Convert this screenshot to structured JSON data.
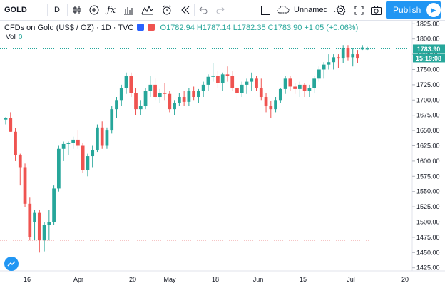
{
  "toolbar": {
    "symbol": "GOLD",
    "interval": "D",
    "layout_name": "Unnamed",
    "publish_label": "Publish"
  },
  "legend": {
    "title": "CFDs on Gold (US$ / OZ) · 1D · TVC",
    "open": "O1782.94",
    "high": "H1787.14",
    "low": "L1782.35",
    "close": "C1783.90",
    "change": "+1.05 (+0.06%)",
    "vol_label": "Vol",
    "vol_value": "0"
  },
  "price_axis": {
    "current_price": "1783.90",
    "countdown": "15:19:08"
  },
  "colors": {
    "up": "#26a69a",
    "down": "#ef5350",
    "accent": "#2196f3"
  },
  "chart_data": {
    "type": "candlestick",
    "x_labels": [
      "16",
      "Apr",
      "20",
      "May",
      "18",
      "Jun",
      "15",
      "Jul",
      "20"
    ],
    "y_ticks": [
      1425,
      1450,
      1475,
      1500,
      1525,
      1550,
      1575,
      1600,
      1625,
      1650,
      1675,
      1700,
      1725,
      1750,
      1775,
      1800,
      1825
    ],
    "ylim": [
      1420,
      1830
    ],
    "current_price": 1783.9,
    "ohlc": [
      [
        1668,
        1672,
        1660,
        1670
      ],
      [
        1670,
        1680,
        1648,
        1648
      ],
      [
        1648,
        1654,
        1600,
        1610
      ],
      [
        1610,
        1612,
        1560,
        1590
      ],
      [
        1590,
        1596,
        1525,
        1530
      ],
      [
        1530,
        1540,
        1470,
        1475
      ],
      [
        1500,
        1520,
        1470,
        1515
      ],
      [
        1515,
        1520,
        1450,
        1470
      ],
      [
        1470,
        1500,
        1452,
        1495
      ],
      [
        1495,
        1520,
        1470,
        1500
      ],
      [
        1500,
        1560,
        1495,
        1555
      ],
      [
        1555,
        1625,
        1550,
        1620
      ],
      [
        1620,
        1632,
        1600,
        1628
      ],
      [
        1628,
        1632,
        1610,
        1630
      ],
      [
        1630,
        1640,
        1620,
        1635
      ],
      [
        1635,
        1650,
        1620,
        1625
      ],
      [
        1625,
        1630,
        1580,
        1585
      ],
      [
        1585,
        1612,
        1575,
        1608
      ],
      [
        1608,
        1625,
        1590,
        1618
      ],
      [
        1618,
        1660,
        1615,
        1655
      ],
      [
        1655,
        1665,
        1620,
        1625
      ],
      [
        1625,
        1655,
        1620,
        1650
      ],
      [
        1650,
        1690,
        1645,
        1685
      ],
      [
        1685,
        1705,
        1670,
        1700
      ],
      [
        1700,
        1725,
        1690,
        1720
      ],
      [
        1720,
        1745,
        1710,
        1740
      ],
      [
        1740,
        1745,
        1705,
        1712
      ],
      [
        1712,
        1720,
        1675,
        1685
      ],
      [
        1685,
        1700,
        1675,
        1690
      ],
      [
        1690,
        1720,
        1685,
        1715
      ],
      [
        1715,
        1740,
        1705,
        1725
      ],
      [
        1725,
        1735,
        1700,
        1705
      ],
      [
        1705,
        1718,
        1695,
        1712
      ],
      [
        1712,
        1728,
        1700,
        1710
      ],
      [
        1710,
        1715,
        1680,
        1685
      ],
      [
        1685,
        1700,
        1675,
        1695
      ],
      [
        1695,
        1712,
        1690,
        1705
      ],
      [
        1705,
        1715,
        1690,
        1697
      ],
      [
        1697,
        1720,
        1690,
        1715
      ],
      [
        1715,
        1722,
        1700,
        1705
      ],
      [
        1705,
        1718,
        1695,
        1715
      ],
      [
        1715,
        1730,
        1705,
        1725
      ],
      [
        1725,
        1742,
        1715,
        1738
      ],
      [
        1738,
        1760,
        1730,
        1740
      ],
      [
        1740,
        1748,
        1720,
        1728
      ],
      [
        1728,
        1745,
        1715,
        1742
      ],
      [
        1742,
        1755,
        1730,
        1740
      ],
      [
        1740,
        1748,
        1715,
        1720
      ],
      [
        1720,
        1725,
        1700,
        1712
      ],
      [
        1712,
        1730,
        1705,
        1725
      ],
      [
        1725,
        1735,
        1710,
        1730
      ],
      [
        1730,
        1745,
        1715,
        1735
      ],
      [
        1735,
        1740,
        1715,
        1720
      ],
      [
        1720,
        1735,
        1700,
        1705
      ],
      [
        1705,
        1712,
        1680,
        1690
      ],
      [
        1690,
        1698,
        1670,
        1685
      ],
      [
        1685,
        1705,
        1680,
        1700
      ],
      [
        1700,
        1720,
        1695,
        1718
      ],
      [
        1718,
        1740,
        1710,
        1735
      ],
      [
        1735,
        1740,
        1715,
        1722
      ],
      [
        1722,
        1728,
        1710,
        1718
      ],
      [
        1718,
        1730,
        1705,
        1725
      ],
      [
        1725,
        1728,
        1705,
        1715
      ],
      [
        1715,
        1725,
        1705,
        1720
      ],
      [
        1720,
        1740,
        1712,
        1735
      ],
      [
        1735,
        1755,
        1730,
        1750
      ],
      [
        1750,
        1762,
        1735,
        1758
      ],
      [
        1758,
        1775,
        1750,
        1762
      ],
      [
        1762,
        1775,
        1750,
        1770
      ],
      [
        1770,
        1775,
        1752,
        1768
      ],
      [
        1768,
        1790,
        1760,
        1785
      ],
      [
        1785,
        1790,
        1765,
        1770
      ],
      [
        1770,
        1785,
        1755,
        1775
      ],
      [
        1775,
        1782,
        1760,
        1768
      ],
      [
        1783,
        1790,
        1782,
        1786
      ],
      [
        1783,
        1787,
        1782,
        1784
      ]
    ]
  }
}
